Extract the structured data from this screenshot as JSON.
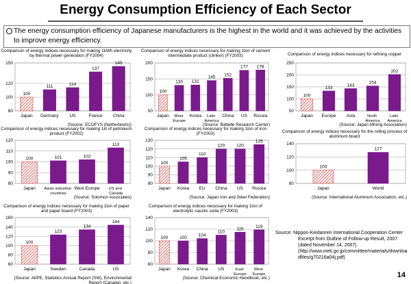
{
  "header": {
    "title": "Energy Consumption Efficiency of Each Sector"
  },
  "summary": "The energy consumption efficiency of Japanese manufacturers is the highest in the world and it was achieved by the activities to improve energy efficiency.",
  "chart_data": [
    {
      "type": "bar",
      "title": "Comparison of energy indices necessary for making 1kWh electricity by thermal power generation (FY2004)",
      "categories": [
        "Japan",
        "Germany",
        "US",
        "France",
        "China"
      ],
      "values": [
        100,
        111,
        114,
        137,
        145
      ],
      "ylim": [
        80,
        150
      ],
      "yticks": [
        80,
        100,
        120,
        150
      ],
      "source": "(Source: ECOFYS (Netherlands))",
      "color": "#7a1a8c",
      "highlight_color": "#d9453f",
      "grid": true
    },
    {
      "type": "bar",
      "title": "Comparison of energy indices necessary for making 1ton of cement intermediate product (clinker) (FY2003)",
      "categories": [
        "Japan",
        "West Europe",
        "Korea",
        "Latin America",
        "China",
        "US",
        "Russia"
      ],
      "values": [
        100,
        130,
        131,
        145,
        152,
        177,
        178
      ],
      "ylim": [
        50,
        200
      ],
      "yticks": [
        50,
        100,
        150,
        200
      ],
      "source": "(Source: Battelle Research Center)",
      "color": "#7a1a8c",
      "highlight_color": "#d9453f",
      "grid": true
    },
    {
      "type": "bar",
      "title": "Comparison of energy indices necessary for refining copper",
      "categories": [
        "Japan",
        "Europe",
        "Asia",
        "North America",
        "Latin America"
      ],
      "values": [
        100,
        133,
        143,
        154,
        202
      ],
      "ylim": [
        50,
        250
      ],
      "yticks": [
        50,
        100,
        150,
        200,
        250
      ],
      "source": "(Source: Japan Mining Association)",
      "color": "#7a1a8c",
      "highlight_color": "#d9453f",
      "grid": true
    },
    {
      "type": "bar",
      "title": "Comparison of energy indices necessary for making 1kl of petroleum product (FY2002)",
      "categories": [
        "Japan",
        "Asian industrial countries",
        "West Europe",
        "US and Canada"
      ],
      "values": [
        100,
        101,
        102,
        113
      ],
      "ylim": [
        80,
        120
      ],
      "yticks": [
        80,
        90,
        100,
        110,
        120
      ],
      "source": "(Source: Solomon Associates)",
      "color": "#7a1a8c",
      "highlight_color": "#d9453f",
      "grid": true
    },
    {
      "type": "bar",
      "title": "Comparison of energy indices necessary for making 1ton of iron (FY2003)",
      "categories": [
        "Japan",
        "Korea",
        "EU",
        "China",
        "US",
        "Russia"
      ],
      "values": [
        100,
        105,
        110,
        120,
        120,
        125
      ],
      "ylim": [
        80,
        130
      ],
      "yticks": [
        80,
        90,
        100,
        110,
        120,
        130
      ],
      "source": "(Source: Japan Iron and Steel Federation)",
      "color": "#7a1a8c",
      "highlight_color": "#d9453f",
      "grid": true
    },
    {
      "type": "bar",
      "title": "Comparison of energy indices necessary for the rolling process of aluminum board",
      "categories": [
        "Japan",
        "World"
      ],
      "values": [
        100,
        127
      ],
      "ylim": [
        80,
        140
      ],
      "yticks": [
        80,
        100,
        120,
        140
      ],
      "source": "(Source: International Aluminum Association, etc.)",
      "color": "#7a1a8c",
      "highlight_color": "#d9453f",
      "grid": true
    },
    {
      "type": "bar",
      "title": "Comparison of energy indices necessary for making 1ton of paper and paper board (FY2003)",
      "categories": [
        "Japan",
        "Sweden",
        "Canada",
        "US"
      ],
      "values": [
        100,
        123,
        134,
        144
      ],
      "ylim": [
        60,
        160
      ],
      "yticks": [
        60,
        80,
        100,
        120,
        140,
        160
      ],
      "source": "(Source: AIIPE, Statistics Annual Report (SW), Environmental Report (Canada), etc.)",
      "color": "#7a1a8c",
      "highlight_color": "#d9453f",
      "grid": true
    },
    {
      "type": "bar",
      "title": "Comparison of energy indices necessary for making 1ton of electrolytic caustic soda (FY2003)",
      "categories": [
        "Japan",
        "Korea",
        "China",
        "US",
        "East Europe",
        "West Europe"
      ],
      "values": [
        100,
        100,
        104,
        110,
        115,
        119
      ],
      "ylim": [
        60,
        140
      ],
      "yticks": [
        60,
        80,
        100,
        120,
        140
      ],
      "source": "(Source: Chemical Economic Handbook, etc.)",
      "color": "#7a1a8c",
      "highlight_color": "#d9453f",
      "grid": true
    }
  ],
  "source_note": [
    "Source: Nippon-Keidanren International Cooperation Center",
    "Excerpt from Outline of Follow-up Result, 2007",
    "(dated November 14, 2007)",
    "(http://www.meti.go.jp/committee/materials/downloadfiles/g70216a04j.pdf)"
  ],
  "page_number": "14"
}
